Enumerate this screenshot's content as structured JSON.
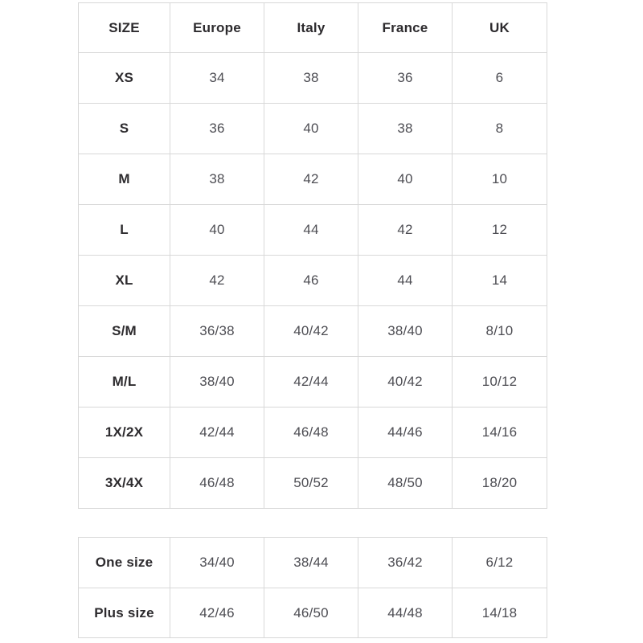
{
  "colors": {
    "background": "#ffffff",
    "border": "#d8d8d8",
    "label_text": "#2d2b2e",
    "value_text": "#4d4d53"
  },
  "table1": {
    "headers": [
      "SIZE",
      "Europe",
      "Italy",
      "France",
      "UK"
    ],
    "rows": [
      {
        "size": "XS",
        "values": [
          "34",
          "38",
          "36",
          "6"
        ]
      },
      {
        "size": "S",
        "values": [
          "36",
          "40",
          "38",
          "8"
        ]
      },
      {
        "size": "M",
        "values": [
          "38",
          "42",
          "40",
          "10"
        ]
      },
      {
        "size": "L",
        "values": [
          "40",
          "44",
          "42",
          "12"
        ]
      },
      {
        "size": "XL",
        "values": [
          "42",
          "46",
          "44",
          "14"
        ]
      },
      {
        "size": "S/M",
        "values": [
          "36/38",
          "40/42",
          "38/40",
          "8/10"
        ]
      },
      {
        "size": "M/L",
        "values": [
          "38/40",
          "42/44",
          "40/42",
          "10/12"
        ]
      },
      {
        "size": "1X/2X",
        "values": [
          "42/44",
          "46/48",
          "44/46",
          "14/16"
        ]
      },
      {
        "size": "3X/4X",
        "values": [
          "46/48",
          "50/52",
          "48/50",
          "18/20"
        ]
      }
    ]
  },
  "table2": {
    "rows": [
      {
        "size": "One size",
        "values": [
          "34/40",
          "38/44",
          "36/42",
          "6/12"
        ]
      },
      {
        "size": "Plus size",
        "values": [
          "42/46",
          "46/50",
          "44/48",
          "14/18"
        ]
      }
    ]
  }
}
